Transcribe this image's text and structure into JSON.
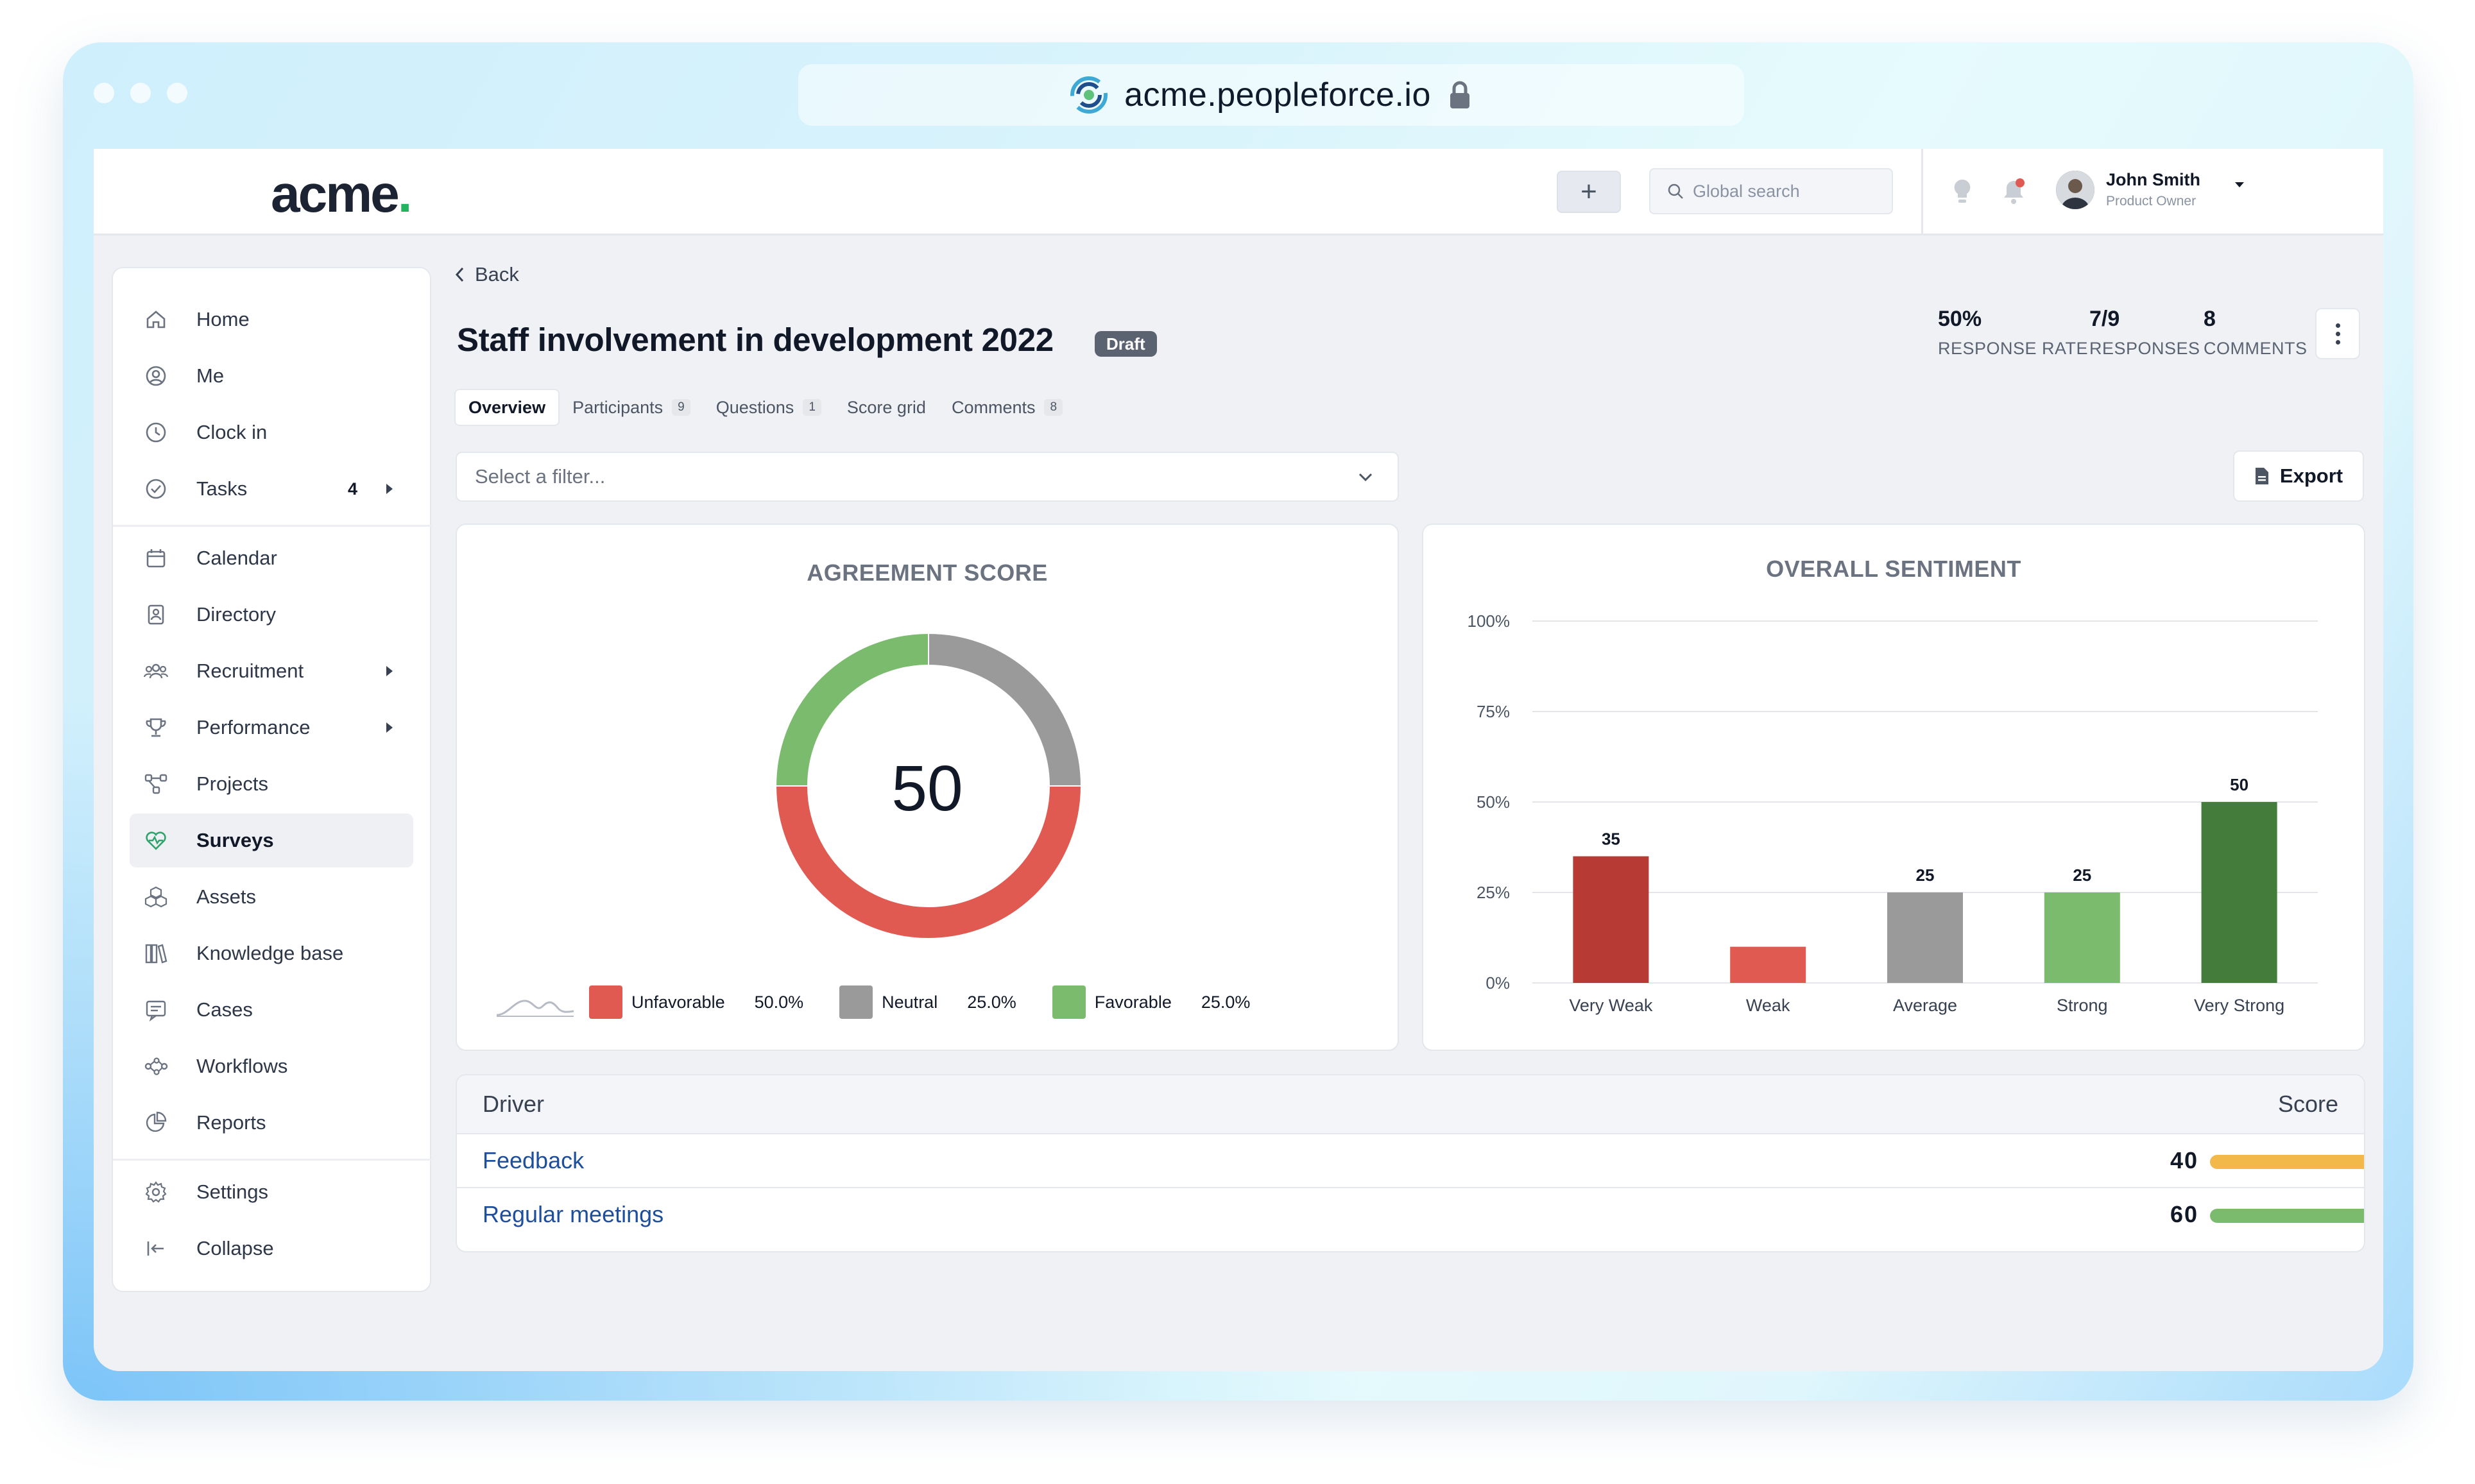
{
  "browser": {
    "url": "acme.peopleforce.io"
  },
  "app": {
    "brand": "acme",
    "brand_dot": "."
  },
  "header": {
    "add_label": "+",
    "search_placeholder": "Global search",
    "user_name": "John Smith",
    "user_role": "Product Owner"
  },
  "sidebar": {
    "items": [
      {
        "label": "Home",
        "icon": "home-icon"
      },
      {
        "label": "Me",
        "icon": "user-circle-icon"
      },
      {
        "label": "Clock in",
        "icon": "clock-icon"
      },
      {
        "label": "Tasks",
        "icon": "check-circle-icon",
        "badge": "4"
      },
      {
        "label": "Calendar",
        "icon": "calendar-icon"
      },
      {
        "label": "Directory",
        "icon": "directory-icon"
      },
      {
        "label": "Recruitment",
        "icon": "people-icon"
      },
      {
        "label": "Performance",
        "icon": "trophy-icon"
      },
      {
        "label": "Projects",
        "icon": "projects-icon"
      },
      {
        "label": "Surveys",
        "icon": "heart-pulse-icon",
        "active": true
      },
      {
        "label": "Assets",
        "icon": "assets-icon"
      },
      {
        "label": "Knowledge base",
        "icon": "books-icon"
      },
      {
        "label": "Cases",
        "icon": "cases-icon"
      },
      {
        "label": "Workflows",
        "icon": "workflow-icon"
      },
      {
        "label": "Reports",
        "icon": "pie-icon"
      },
      {
        "label": "Settings",
        "icon": "gear-icon"
      },
      {
        "label": "Collapse",
        "icon": "collapse-icon"
      }
    ]
  },
  "page": {
    "back_label": "Back",
    "title": "Staff involvement in development 2022",
    "status_badge": "Draft",
    "stats": [
      {
        "value": "50%",
        "label": "RESPONSE RATE"
      },
      {
        "value": "7/9",
        "label": "RESPONSES"
      },
      {
        "value": "8",
        "label": "COMMENTS"
      }
    ],
    "tabs": [
      {
        "label": "Overview",
        "active": true
      },
      {
        "label": "Participants",
        "count": "9"
      },
      {
        "label": "Questions",
        "count": "1"
      },
      {
        "label": "Score grid"
      },
      {
        "label": "Comments",
        "count": "8"
      }
    ],
    "filter_placeholder": "Select a filter...",
    "export_label": "Export"
  },
  "agreement": {
    "title": "AGREEMENT SCORE",
    "score": "50",
    "legend": [
      {
        "name": "Unfavorable",
        "pct": "50.0%",
        "color": "#e05a52"
      },
      {
        "name": "Neutral",
        "pct": "25.0%",
        "color": "#9a9a9a"
      },
      {
        "name": "Favorable",
        "pct": "25.0%",
        "color": "#7bbb6e"
      }
    ]
  },
  "chart_data": [
    {
      "type": "pie",
      "title": "AGREEMENT SCORE",
      "categories": [
        "Unfavorable",
        "Neutral",
        "Favorable"
      ],
      "values": [
        50.0,
        25.0,
        25.0
      ],
      "colors": [
        "#e05a52",
        "#9a9a9a",
        "#7bbb6e"
      ],
      "donut": true,
      "center_label": "50"
    },
    {
      "type": "bar",
      "title": "OVERALL SENTIMENT",
      "categories": [
        "Very Weak",
        "Weak",
        "Average",
        "Strong",
        "Very Strong"
      ],
      "values": [
        35,
        10,
        25,
        25,
        50
      ],
      "data_labels": [
        "35",
        "",
        "25",
        "25",
        "50"
      ],
      "colors": [
        "#b83a34",
        "#e05a52",
        "#9a9a9a",
        "#7bbb6e",
        "#447c3c"
      ],
      "y_ticks": [
        "0%",
        "25%",
        "50%",
        "75%",
        "100%"
      ],
      "ylim": [
        0,
        100
      ],
      "grid": true
    }
  ],
  "drivers": {
    "header_driver": "Driver",
    "header_score": "Score",
    "rows": [
      {
        "name": "Feedback",
        "score": "40",
        "fraction": 0.4,
        "color": "#f2b84a"
      },
      {
        "name": "Regular meetings",
        "score": "60",
        "fraction": 0.6,
        "color": "#7bbb6e"
      }
    ]
  }
}
